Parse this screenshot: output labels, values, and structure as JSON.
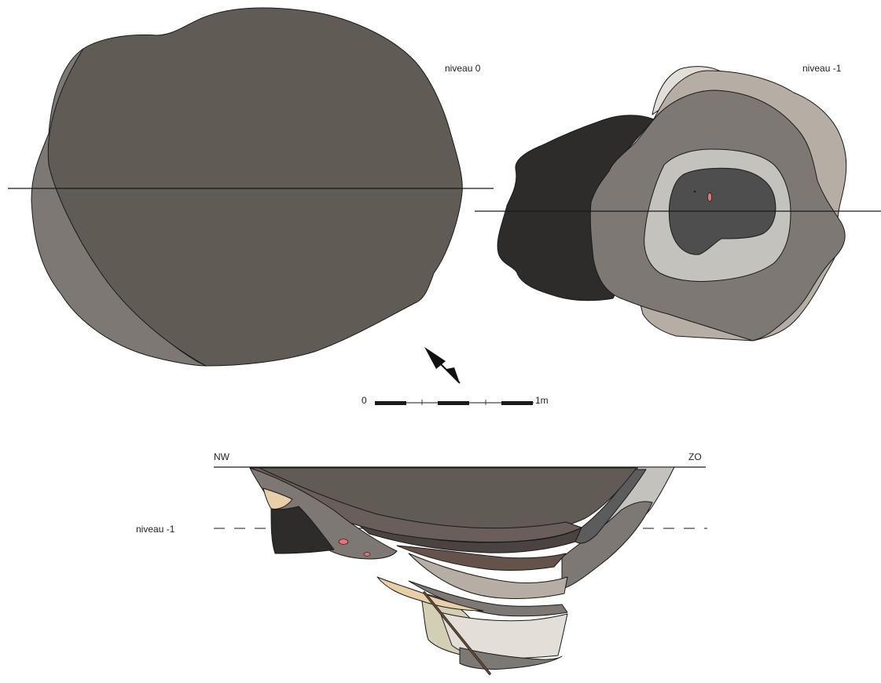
{
  "plan_top": {
    "label": "niveau 0"
  },
  "plan_bottom": {
    "label": "niveau -1"
  },
  "scale_bar": {
    "start_label": "0",
    "end_label": "1m"
  },
  "section": {
    "left_label": "NW",
    "right_label": "ZO",
    "level_label": "niveau -1"
  },
  "colors": {
    "fill_dark_grey": "#615b56",
    "fill_mid_grey": "#7d7873",
    "fill_light_beige": "#b6aea4",
    "fill_very_light": "#e3dfd8",
    "fill_light_grey": "#c4c2bd",
    "fill_charcoal": "#2d2c2b",
    "fill_dark_core": "#4f4e4e",
    "fill_sand": "#e8cfa7",
    "fill_pale_olive": "#d2cfb4",
    "fill_brown": "#655349",
    "fill_red_find": "#ec7373"
  }
}
